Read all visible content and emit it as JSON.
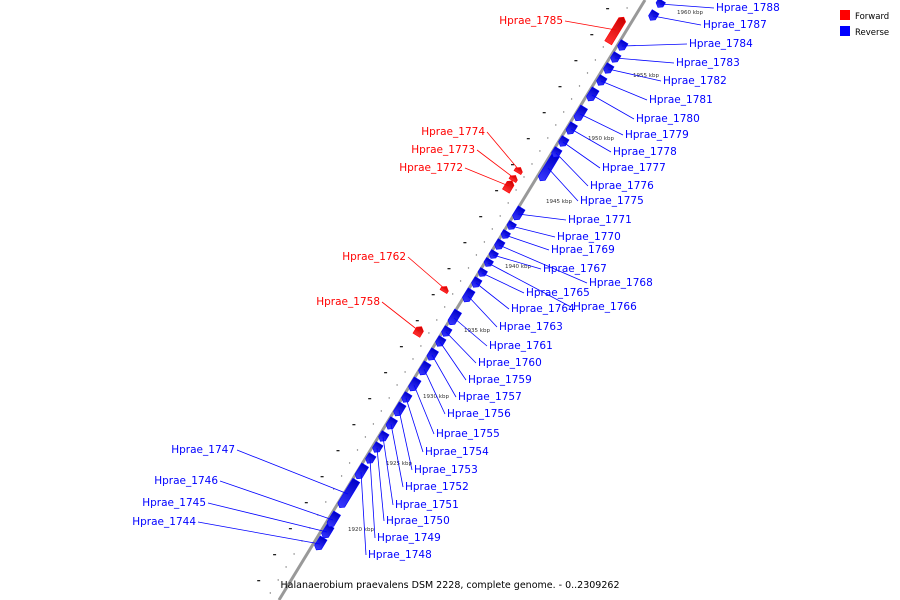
{
  "caption": "Halanaerobium praevalens DSM 2228, complete genome. - 0..2309262",
  "legend": [
    {
      "label": "Forward",
      "color": "#ff0000"
    },
    {
      "label": "Reverse",
      "color": "#0000ff"
    }
  ],
  "colors": {
    "forward": "#ff0000",
    "reverse": "#0000ff",
    "axis": "#888888"
  },
  "scale_labels": [
    "1920 kbp",
    "1925 kbp",
    "1930 kbp",
    "1935 kbp",
    "1940 kbp",
    "1945 kbp",
    "1950 kbp",
    "1955 kbp",
    "1960 kbp"
  ],
  "genes": [
    {
      "label": "Hprae_1744",
      "strand": "reverse"
    },
    {
      "label": "Hprae_1745",
      "strand": "reverse"
    },
    {
      "label": "Hprae_1746",
      "strand": "reverse"
    },
    {
      "label": "Hprae_1747",
      "strand": "reverse"
    },
    {
      "label": "Hprae_1748",
      "strand": "reverse"
    },
    {
      "label": "Hprae_1749",
      "strand": "reverse"
    },
    {
      "label": "Hprae_1750",
      "strand": "reverse"
    },
    {
      "label": "Hprae_1751",
      "strand": "reverse"
    },
    {
      "label": "Hprae_1752",
      "strand": "reverse"
    },
    {
      "label": "Hprae_1753",
      "strand": "reverse"
    },
    {
      "label": "Hprae_1754",
      "strand": "reverse"
    },
    {
      "label": "Hprae_1755",
      "strand": "reverse"
    },
    {
      "label": "Hprae_1756",
      "strand": "reverse"
    },
    {
      "label": "Hprae_1757",
      "strand": "reverse"
    },
    {
      "label": "Hprae_1758",
      "strand": "forward"
    },
    {
      "label": "Hprae_1759",
      "strand": "reverse"
    },
    {
      "label": "Hprae_1760",
      "strand": "reverse"
    },
    {
      "label": "Hprae_1761",
      "strand": "reverse"
    },
    {
      "label": "Hprae_1762",
      "strand": "forward"
    },
    {
      "label": "Hprae_1763",
      "strand": "reverse"
    },
    {
      "label": "Hprae_1764",
      "strand": "reverse"
    },
    {
      "label": "Hprae_1765",
      "strand": "reverse"
    },
    {
      "label": "Hprae_1766",
      "strand": "reverse"
    },
    {
      "label": "Hprae_1767",
      "strand": "reverse"
    },
    {
      "label": "Hprae_1768",
      "strand": "reverse"
    },
    {
      "label": "Hprae_1769",
      "strand": "reverse"
    },
    {
      "label": "Hprae_1770",
      "strand": "reverse"
    },
    {
      "label": "Hprae_1771",
      "strand": "reverse"
    },
    {
      "label": "Hprae_1772",
      "strand": "forward"
    },
    {
      "label": "Hprae_1773",
      "strand": "forward"
    },
    {
      "label": "Hprae_1774",
      "strand": "forward"
    },
    {
      "label": "Hprae_1775",
      "strand": "reverse"
    },
    {
      "label": "Hprae_1776",
      "strand": "reverse"
    },
    {
      "label": "Hprae_1777",
      "strand": "reverse"
    },
    {
      "label": "Hprae_1778",
      "strand": "reverse"
    },
    {
      "label": "Hprae_1779",
      "strand": "reverse"
    },
    {
      "label": "Hprae_1780",
      "strand": "reverse"
    },
    {
      "label": "Hprae_1781",
      "strand": "reverse"
    },
    {
      "label": "Hprae_1782",
      "strand": "reverse"
    },
    {
      "label": "Hprae_1783",
      "strand": "reverse"
    },
    {
      "label": "Hprae_1784",
      "strand": "reverse"
    },
    {
      "label": "Hprae_1785",
      "strand": "forward"
    },
    {
      "label": "Hprae_1787",
      "strand": "reverse"
    },
    {
      "label": "Hprae_1788",
      "strand": "reverse"
    }
  ]
}
